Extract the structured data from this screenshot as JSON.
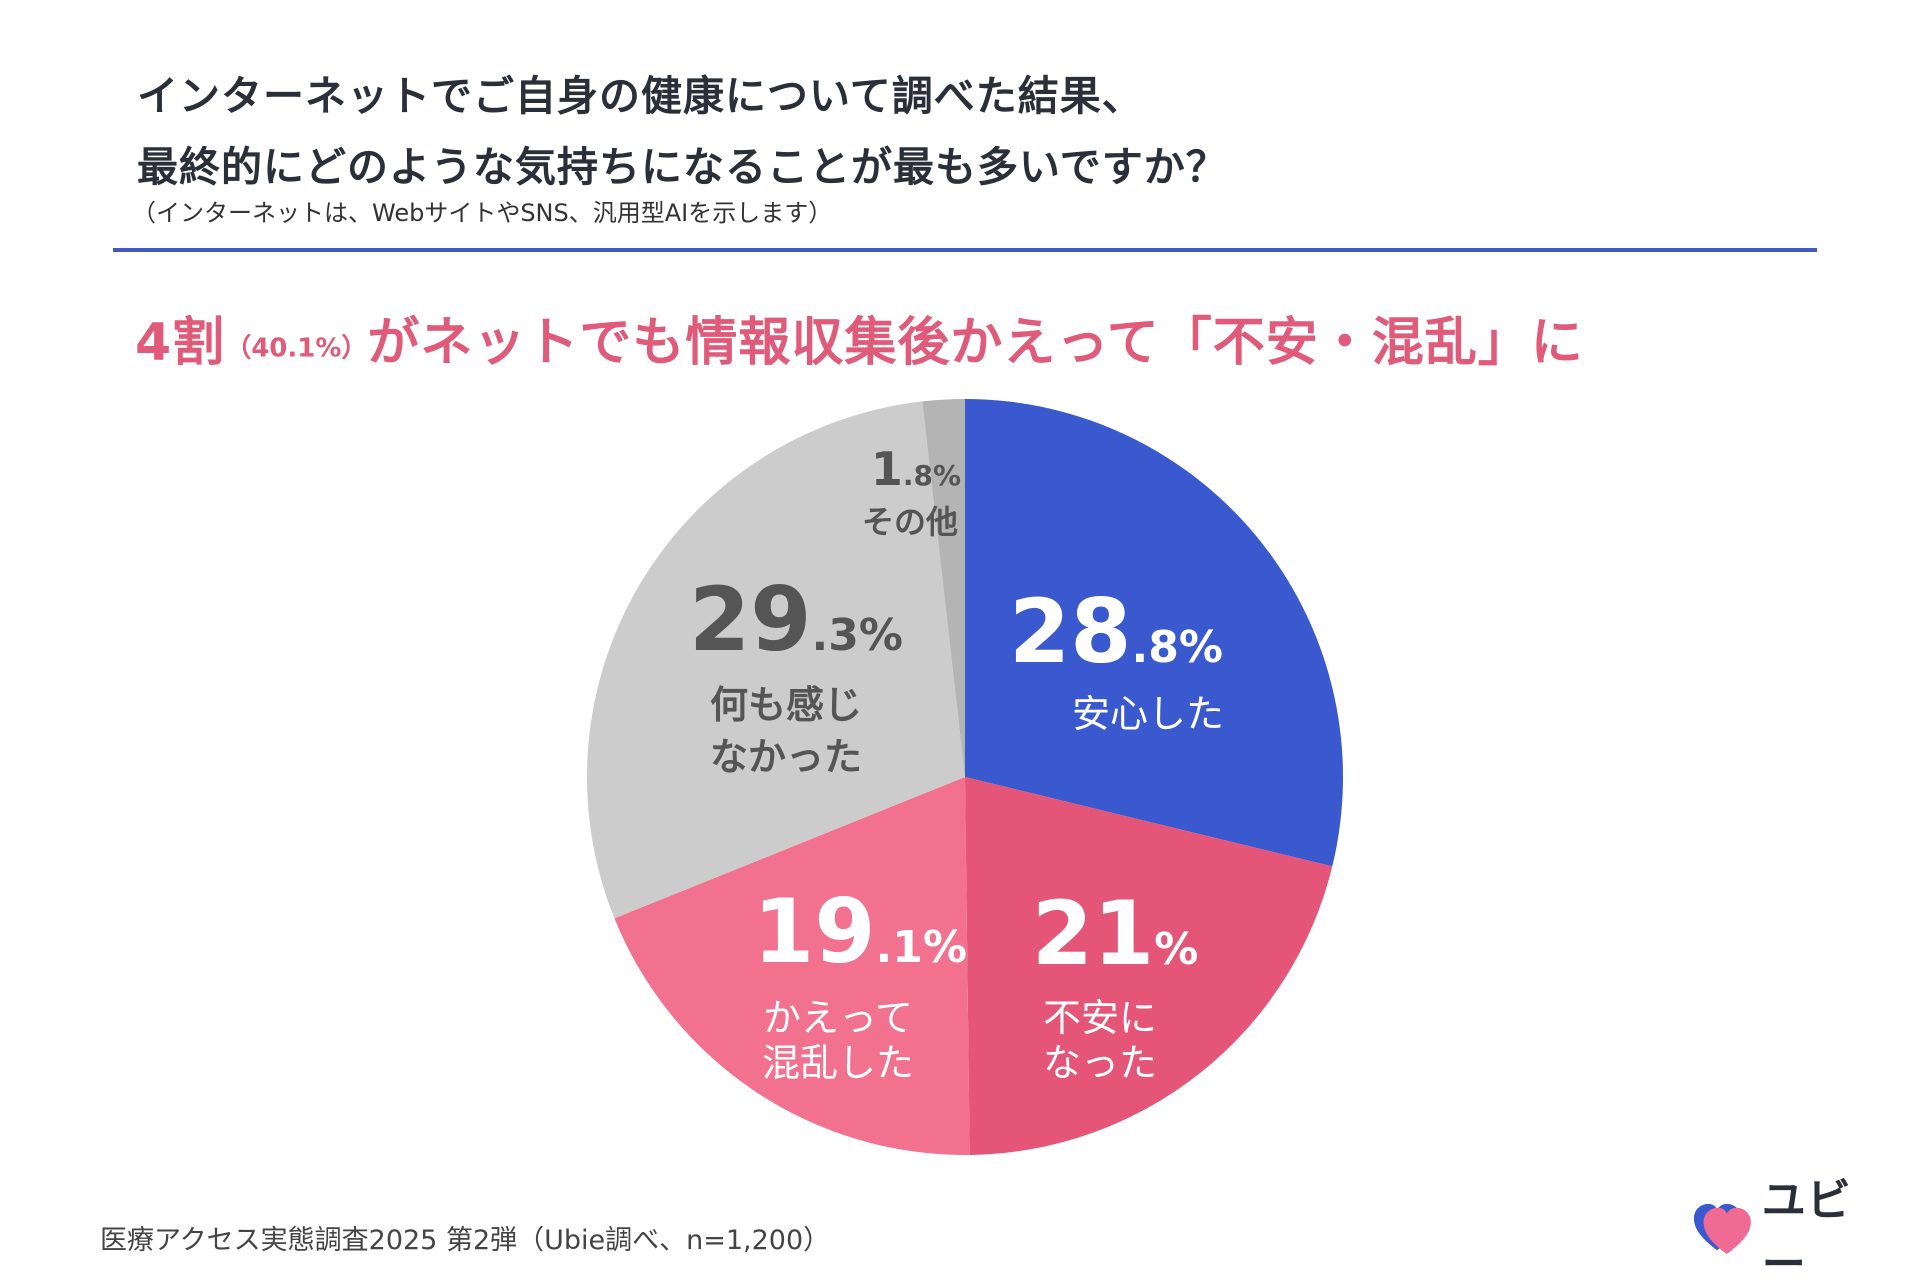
{
  "question": {
    "line1": "インターネットでご自身の健康について調べた結果、",
    "line2": "最終的にどのような気持ちになることが最も多いですか？",
    "note": "（インターネットは、WebサイトやSNS、汎用型AIを示します）"
  },
  "headline": {
    "part1": "4割",
    "part2": "（40.1%）",
    "part3": "がネットでも情報収集後かえって「不安・混乱」に"
  },
  "colors": {
    "relieved": "#3b59cf",
    "anxious": "#e55577",
    "confused": "#f2718f",
    "nothing": "#cccccc",
    "other": "#b4b4b4",
    "headline": "#e05a7a",
    "divider": "#4258c4"
  },
  "chart_data": {
    "type": "pie",
    "start_angle": "12 o'clock",
    "direction": "clockwise",
    "slices": [
      {
        "key": "relieved",
        "label": "安心した",
        "value": 28.8,
        "value_int": "28",
        "value_dec": ".8%"
      },
      {
        "key": "anxious",
        "label": "不安になった",
        "value": 21.0,
        "value_int": "21",
        "value_dec": "%"
      },
      {
        "key": "confused",
        "label": "かえって混乱した",
        "value": 19.1,
        "value_int": "19",
        "value_dec": ".1%"
      },
      {
        "key": "nothing",
        "label": "何も感じなかった",
        "value": 29.3,
        "value_int": "29",
        "value_dec": ".3%"
      },
      {
        "key": "other",
        "label": "その他",
        "value": 1.8,
        "value_int": "1",
        "value_dec": ".8%"
      }
    ]
  },
  "labels": {
    "relieved": [
      "安心した"
    ],
    "anxious": [
      "不安に",
      "なった"
    ],
    "confused": [
      "かえって",
      "混乱した"
    ],
    "nothing": [
      "何も感じ",
      "なかった"
    ],
    "other": [
      "その他"
    ]
  },
  "footer": {
    "source": "医療アクセス実態調査2025 第2弾（Ubie調べ、n=1,200）"
  },
  "logo": {
    "text": "ユビー",
    "icon": "heart-icon"
  }
}
